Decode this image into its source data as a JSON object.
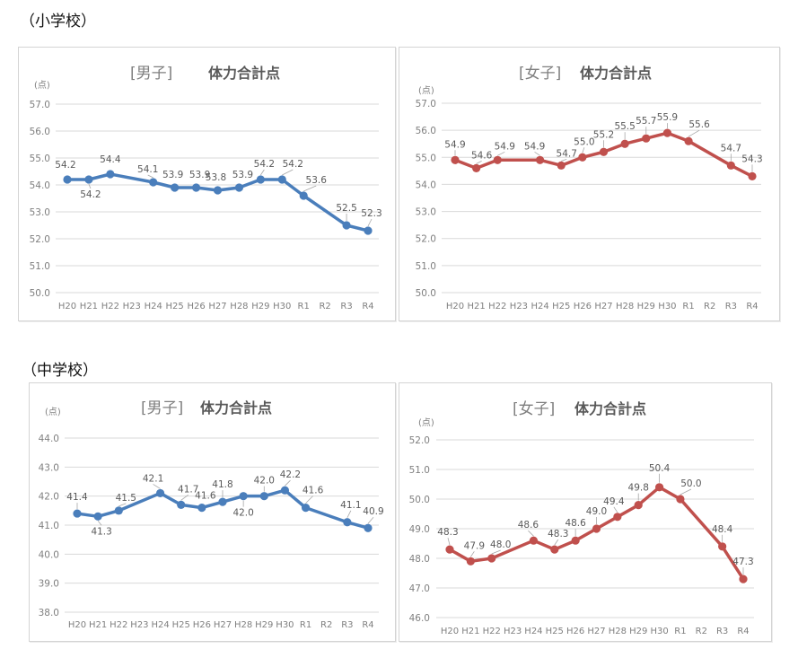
{
  "sections": [
    {
      "label": "（小学校）"
    },
    {
      "label": "（中学校）"
    }
  ],
  "chart_data": [
    {
      "type": "line",
      "school": "小学校",
      "title_sub": "[男子]",
      "title": "体力合計点",
      "unit_label": "(点)",
      "color": "#4a7ebb",
      "categories": [
        "H20",
        "H21",
        "H22",
        "H23",
        "H24",
        "H25",
        "H26",
        "H27",
        "H28",
        "H29",
        "H30",
        "R1",
        "R2",
        "R3",
        "R4"
      ],
      "values": [
        54.2,
        54.2,
        54.4,
        null,
        54.1,
        53.9,
        53.9,
        53.8,
        53.9,
        54.2,
        54.2,
        53.6,
        null,
        52.5,
        52.3
      ],
      "ylim": [
        50.0,
        57.0
      ],
      "yticks": [
        "50.0",
        "51.0",
        "52.0",
        "53.0",
        "54.0",
        "55.0",
        "56.0",
        "57.0"
      ],
      "grid": true,
      "legend": "none"
    },
    {
      "type": "line",
      "school": "小学校",
      "title_sub": "[女子]",
      "title": "体力合計点",
      "unit_label": "(点)",
      "color": "#c0504d",
      "categories": [
        "H20",
        "H21",
        "H22",
        "H23",
        "H24",
        "H25",
        "H26",
        "H27",
        "H28",
        "H29",
        "H30",
        "R1",
        "R2",
        "R3",
        "R4"
      ],
      "values": [
        54.9,
        54.6,
        54.9,
        null,
        54.9,
        54.7,
        55.0,
        55.2,
        55.5,
        55.7,
        55.9,
        55.6,
        null,
        54.7,
        54.3
      ],
      "ylim": [
        50.0,
        57.0
      ],
      "yticks": [
        "50.0",
        "51.0",
        "52.0",
        "53.0",
        "54.0",
        "55.0",
        "56.0",
        "57.0"
      ],
      "grid": true,
      "legend": "none"
    },
    {
      "type": "line",
      "school": "中学校",
      "title_sub": "[男子]",
      "title": "体力合計点",
      "unit_label": "(点)",
      "color": "#4a7ebb",
      "categories": [
        "H20",
        "H21",
        "H22",
        "H23",
        "H24",
        "H25",
        "H26",
        "H27",
        "H28",
        "H29",
        "H30",
        "R1",
        "R2",
        "R3",
        "R4"
      ],
      "values": [
        41.4,
        41.3,
        41.5,
        null,
        42.1,
        41.7,
        41.6,
        41.8,
        42.0,
        42.0,
        42.2,
        41.6,
        null,
        41.1,
        40.9
      ],
      "ylim": [
        38.0,
        44.0
      ],
      "yticks": [
        "38.0",
        "39.0",
        "40.0",
        "41.0",
        "42.0",
        "43.0",
        "44.0"
      ],
      "grid": true,
      "legend": "none"
    },
    {
      "type": "line",
      "school": "中学校",
      "title_sub": "[女子]",
      "title": "体力合計点",
      "unit_label": "(点)",
      "color": "#c0504d",
      "categories": [
        "H20",
        "H21",
        "H22",
        "H23",
        "H24",
        "H25",
        "H26",
        "H27",
        "H28",
        "H29",
        "H30",
        "R1",
        "R2",
        "R3",
        "R4"
      ],
      "values": [
        48.3,
        47.9,
        48.0,
        null,
        48.6,
        48.3,
        48.6,
        49.0,
        49.4,
        49.8,
        50.4,
        50.0,
        null,
        48.4,
        47.3
      ],
      "ylim": [
        46.0,
        52.0
      ],
      "yticks": [
        "46.0",
        "47.0",
        "48.0",
        "49.0",
        "50.0",
        "51.0",
        "52.0"
      ],
      "grid": true,
      "legend": "none"
    }
  ]
}
